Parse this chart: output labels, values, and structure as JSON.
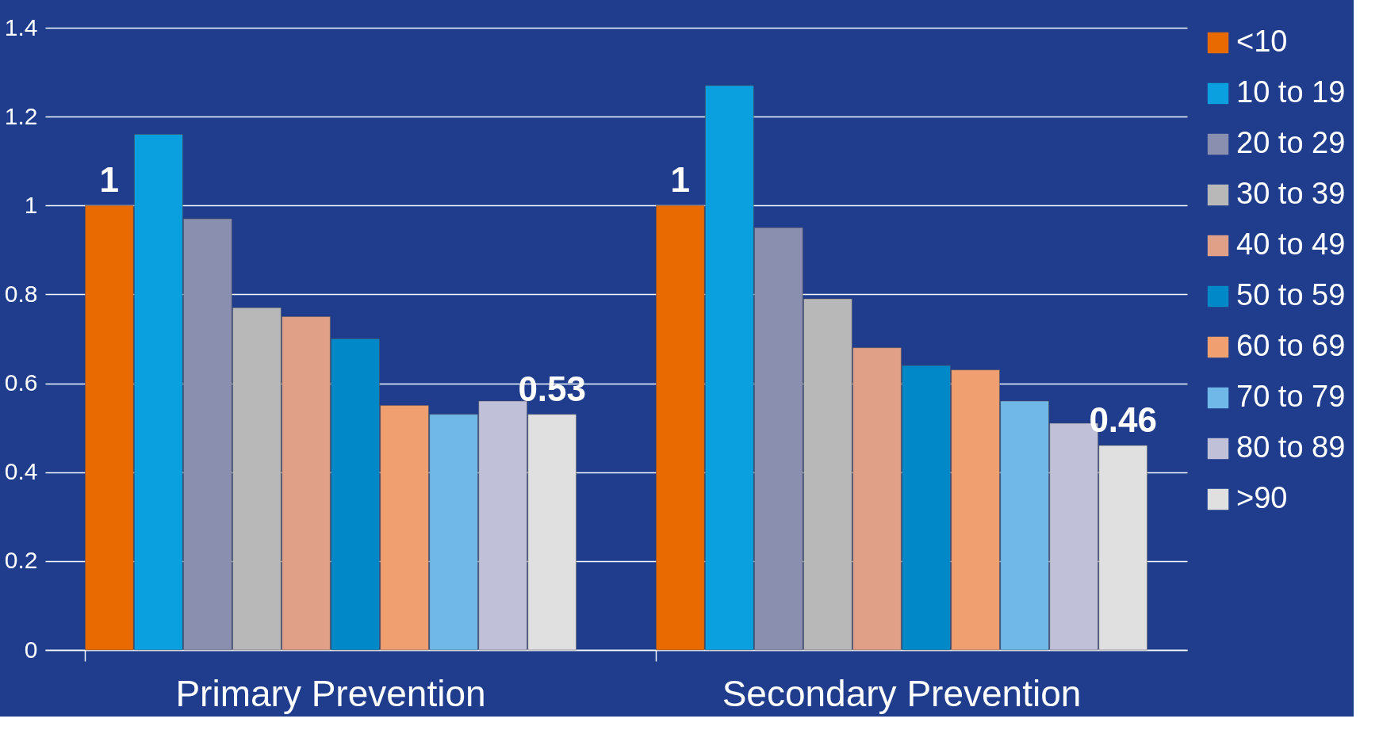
{
  "chart_data": {
    "type": "bar",
    "categories": [
      "Primary Prevention",
      "Secondary Prevention"
    ],
    "series": [
      {
        "name": "<10",
        "color": "#e86a00",
        "values": [
          1,
          1
        ],
        "value_labels": [
          "1",
          "1"
        ]
      },
      {
        "name": "10 to 19",
        "color": "#0aa0e0",
        "values": [
          1.16,
          1.27
        ]
      },
      {
        "name": "20 to 29",
        "color": "#8a8fb0",
        "values": [
          0.97,
          0.95
        ]
      },
      {
        "name": "30 to 39",
        "color": "#b8b8b8",
        "values": [
          0.77,
          0.79
        ]
      },
      {
        "name": "40 to 49",
        "color": "#e0a088",
        "values": [
          0.75,
          0.68
        ]
      },
      {
        "name": "50 to 59",
        "color": "#0088c8",
        "values": [
          0.7,
          0.64
        ]
      },
      {
        "name": "60 to 69",
        "color": "#f0a070",
        "values": [
          0.55,
          0.63
        ]
      },
      {
        "name": "70 to 79",
        "color": "#70b8e8",
        "values": [
          0.53,
          0.56
        ]
      },
      {
        "name": "80 to 89",
        "color": "#c0c0d8",
        "values": [
          0.56,
          0.51
        ]
      },
      {
        "name": ">90",
        "color": "#e0e0e0",
        "values": [
          0.53,
          0.46
        ],
        "value_labels": [
          "0.53",
          "0.46"
        ]
      }
    ],
    "ylim": [
      0,
      1.4
    ],
    "yticks": [
      0,
      0.2,
      0.4,
      0.6,
      0.8,
      1,
      1.2,
      1.4
    ],
    "grid": "y",
    "legend": "right"
  }
}
